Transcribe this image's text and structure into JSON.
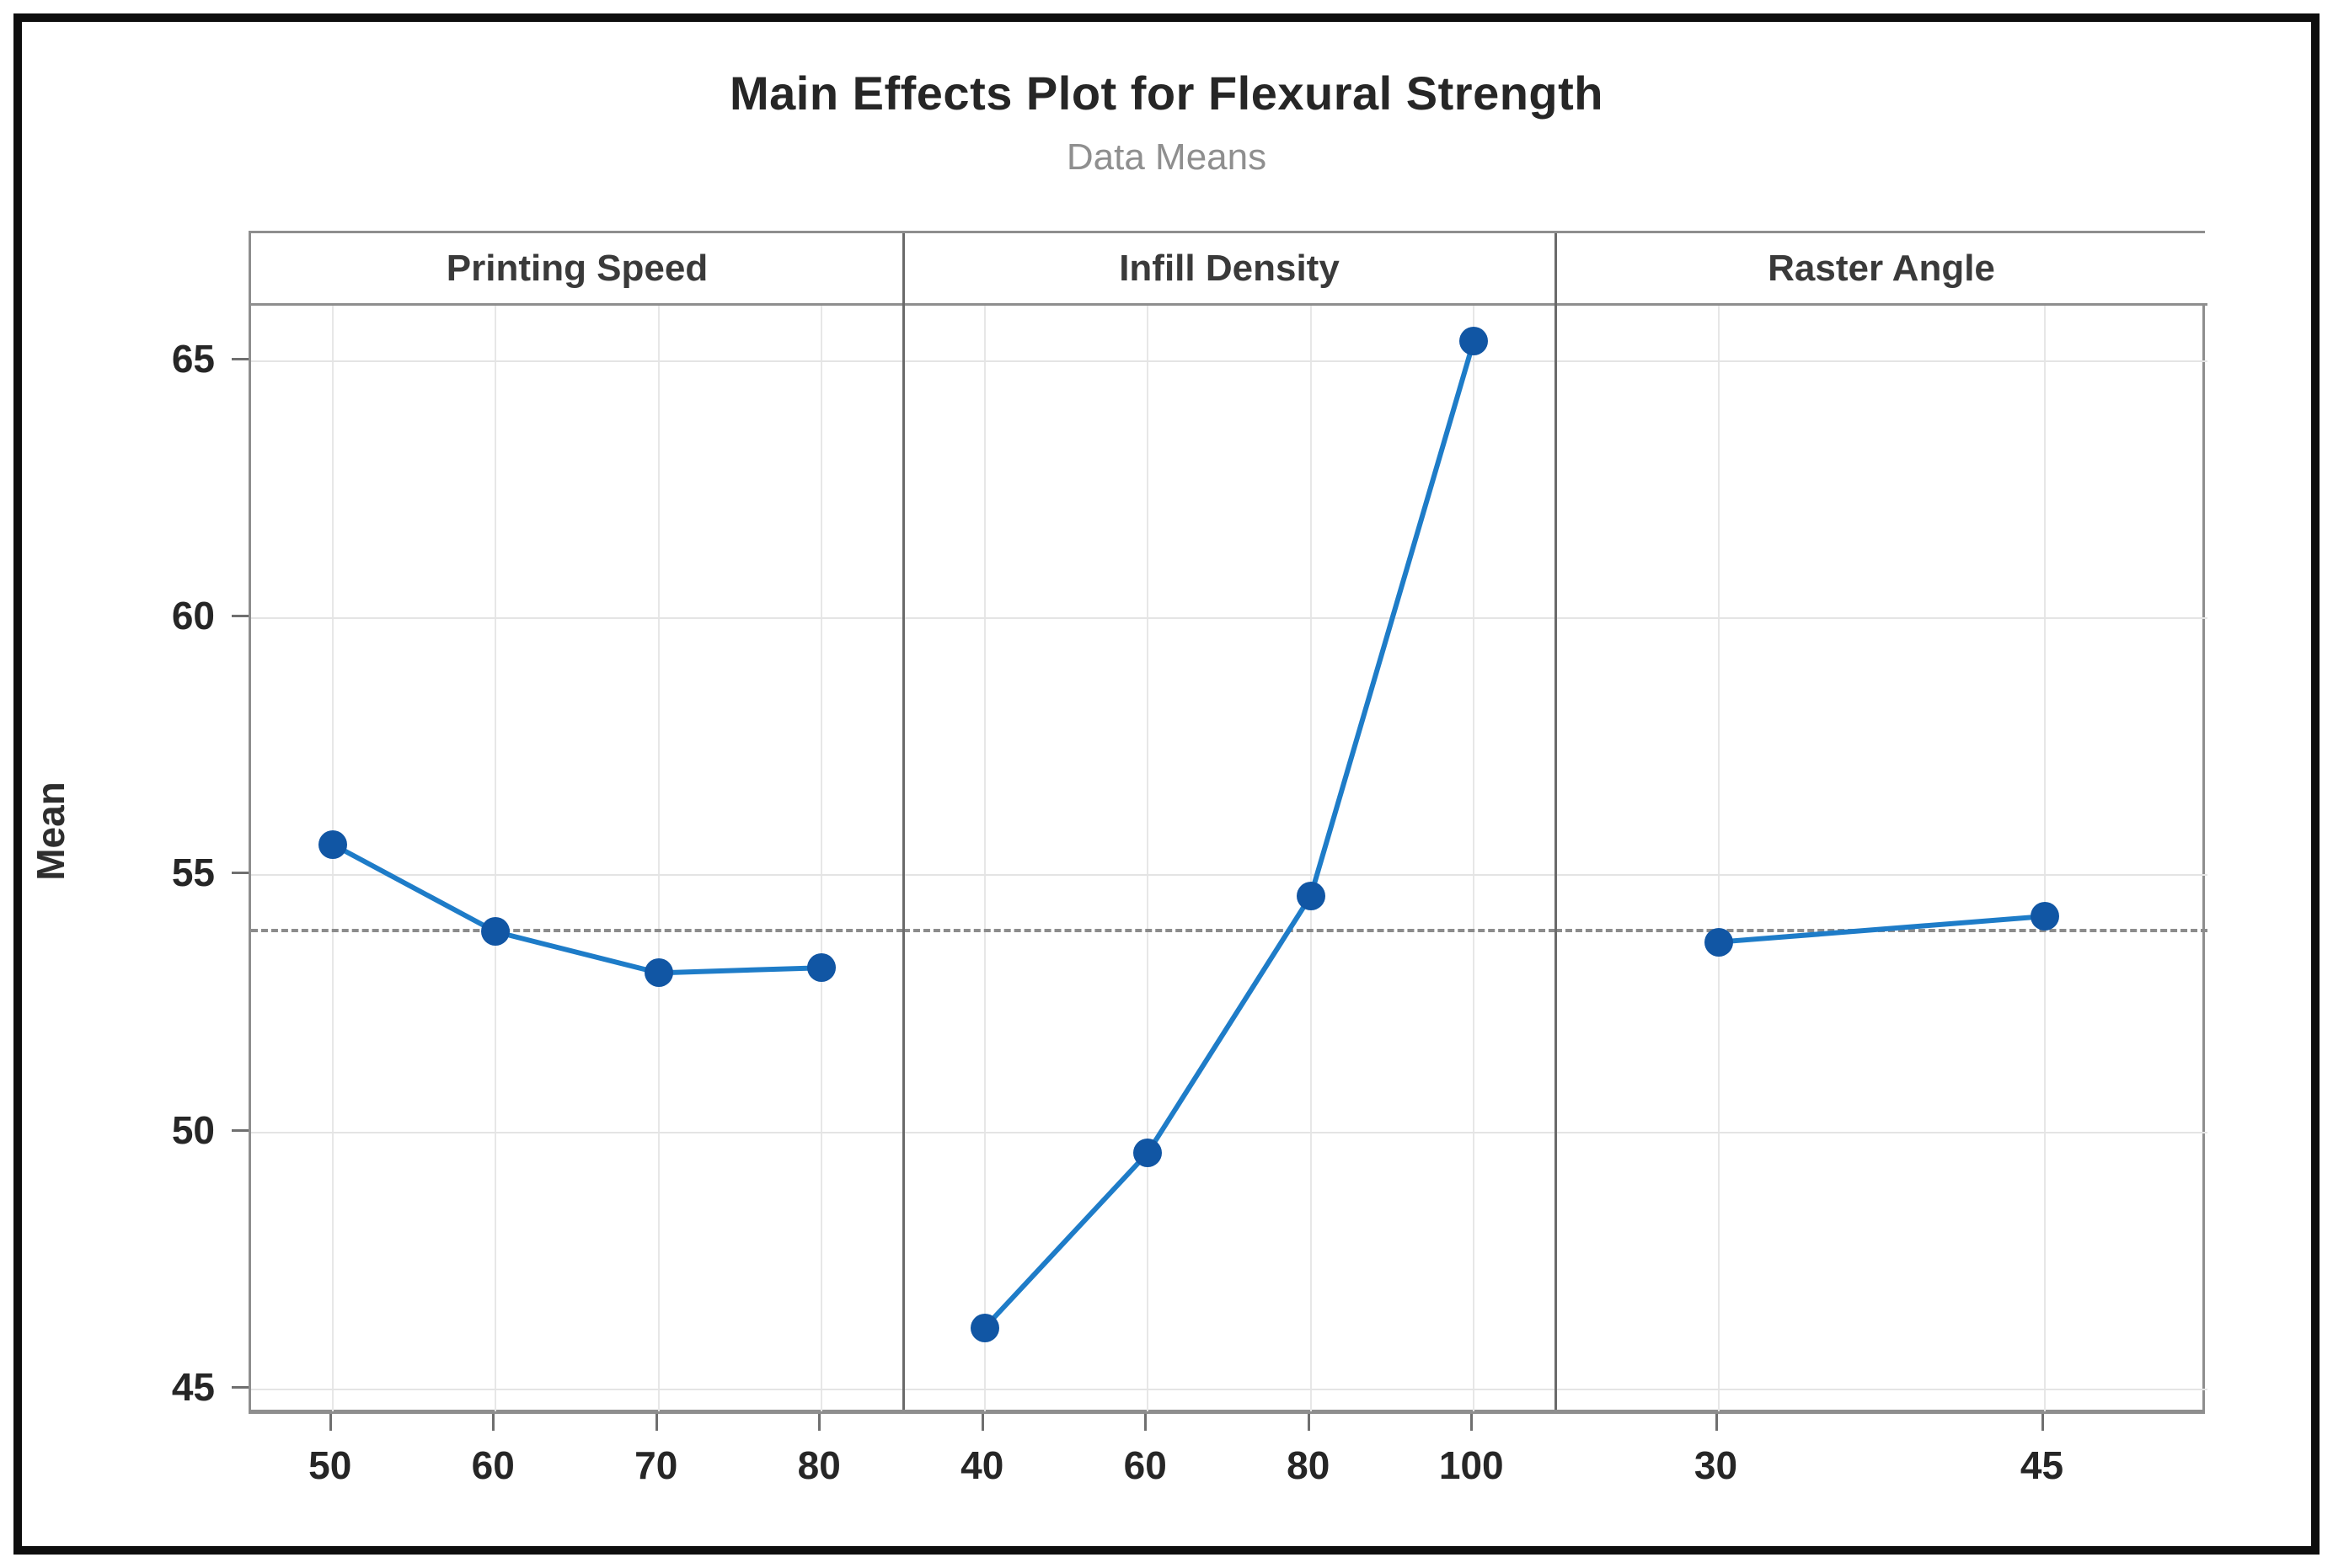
{
  "chart_data": {
    "type": "line",
    "title": "Main Effects Plot for Flexural Strength",
    "subtitle": "Data Means",
    "ylabel": "Mean",
    "ylim": [
      44.57,
      66.08
    ],
    "yticks": [
      45,
      50,
      55,
      60,
      65
    ],
    "grand_mean": 53.95,
    "grid": true,
    "legend_position": "none",
    "panels": [
      {
        "label": "Printing Speed",
        "x": [
          50,
          60,
          70,
          80
        ],
        "y": [
          55.6,
          53.9,
          53.1,
          53.2
        ]
      },
      {
        "label": "Infill Density",
        "x": [
          40,
          60,
          80,
          100
        ],
        "y": [
          46.2,
          49.6,
          54.6,
          65.4
        ]
      },
      {
        "label": "Raster Angle",
        "x": [
          30,
          45
        ],
        "y": [
          53.7,
          54.2
        ]
      }
    ]
  },
  "colors": {
    "marker": "#1156a4",
    "line": "#1e7cc8",
    "dashed_reference": "#8c8c8c",
    "grid": "#e4e4e4",
    "frame": "#8e8e8e",
    "divider": "#6a6a6a",
    "title_text": "#262626",
    "subtitle_text": "#8f8f8f",
    "outer_border": "#0e0e0e"
  }
}
